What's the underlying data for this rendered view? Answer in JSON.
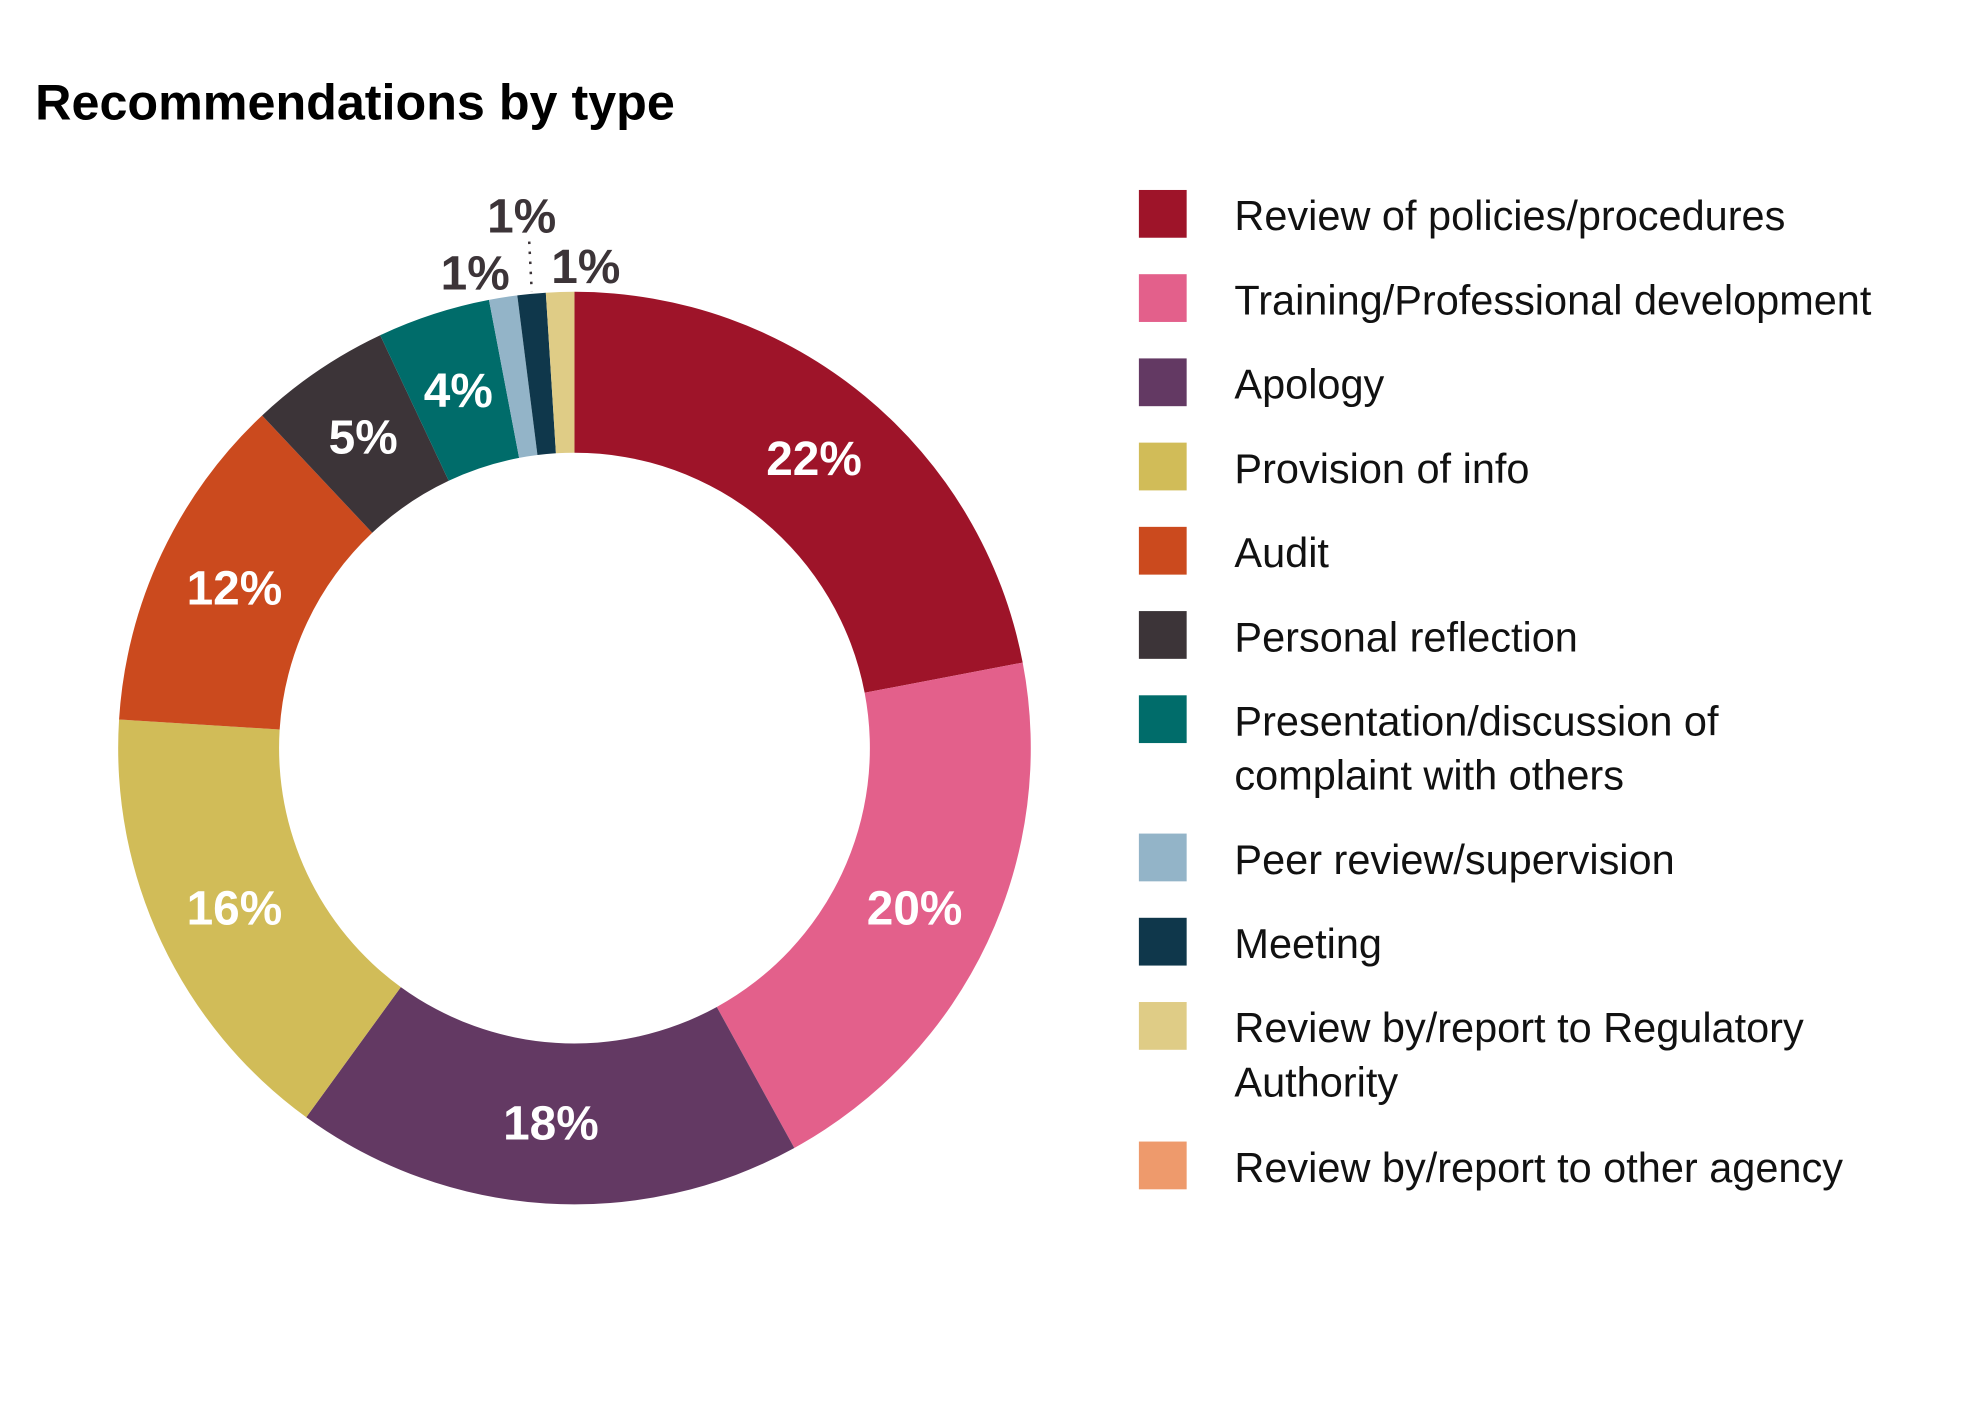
{
  "chart_data": {
    "type": "pie",
    "donut": true,
    "title": "Recommendations by type",
    "legend_position": "right",
    "slices": [
      {
        "label": "Review of policies/procedures",
        "value": 22,
        "display": "22%",
        "color": "#9E1429"
      },
      {
        "label": "Training/Professional development",
        "value": 20,
        "display": "20%",
        "color": "#E3608B"
      },
      {
        "label": "Apology",
        "value": 18,
        "display": "18%",
        "color": "#633963"
      },
      {
        "label": "Provision of info",
        "value": 16,
        "display": "16%",
        "color": "#D1BC58"
      },
      {
        "label": "Audit",
        "value": 12,
        "display": "12%",
        "color": "#CB4A1E"
      },
      {
        "label": "Personal reflection",
        "value": 5,
        "display": "5%",
        "color": "#3C3438"
      },
      {
        "label": "Presentation/discussion of complaint with others",
        "value": 4,
        "display": "4%",
        "color": "#006C6A"
      },
      {
        "label": "Peer review/supervision",
        "value": 1,
        "display": "1%",
        "color": "#93B4C8"
      },
      {
        "label": "Meeting",
        "value": 1,
        "display": "1%",
        "color": "#0F374B"
      },
      {
        "label": "Review by/report to Regulatory Authority",
        "value": 1,
        "display": "1%",
        "color": "#DFCC86"
      },
      {
        "label": "Review by/report to other agency",
        "value": 0,
        "display": "",
        "color": "#EE9A6C"
      }
    ]
  }
}
